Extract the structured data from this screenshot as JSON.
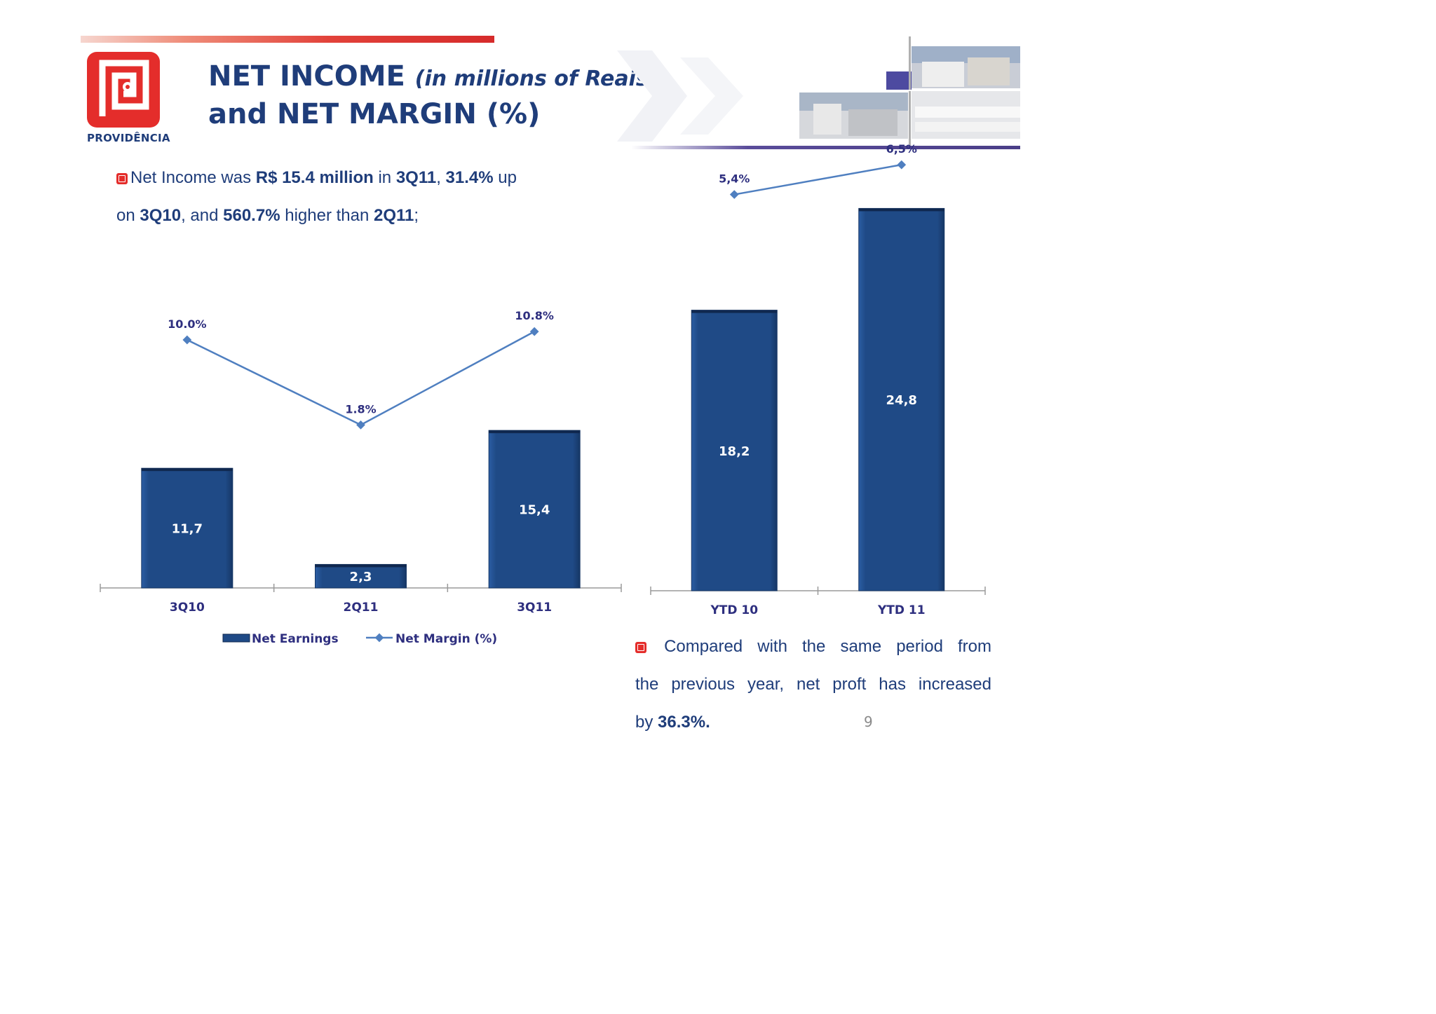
{
  "logo": {
    "name": "PROVIDÊNCIA"
  },
  "title": {
    "line1_main": "NET INCOME",
    "line1_italic": "(in millions of Reais)",
    "line2": "and NET MARGIN (%)"
  },
  "text1": {
    "p1": "Net Income was ",
    "b1": "R$ 15.4 million",
    "p2": " in ",
    "b2": "3Q11",
    "p3": ", ",
    "b3": "31.4%",
    "p4": " up",
    "p5": "on ",
    "b4": "3Q10",
    "p6": ", and ",
    "b5": "560.7%",
    "p7": " higher than ",
    "b6": "2Q11",
    "p8": ";"
  },
  "text2": {
    "line1": "Compared with the same period from",
    "line2": "the previous year, net proft has increased",
    "line3_prefix": "by ",
    "line3_bold": "36.3%."
  },
  "page_number": "9",
  "colors": {
    "bar": "#1f4a86",
    "line": "#4f7fc0",
    "label": "#2e2f7f",
    "accent": "#e42d2b"
  },
  "chart_data": [
    {
      "type": "bar",
      "categories": [
        "3Q10",
        "2Q11",
        "3Q11"
      ],
      "series": [
        {
          "name": "Net Earnings",
          "type": "bar",
          "values": [
            11.7,
            2.3,
            15.4
          ],
          "labels": [
            "11,7",
            "2,3",
            "15,4"
          ]
        },
        {
          "name": "Net Margin (%)",
          "type": "line",
          "values": [
            10.0,
            1.8,
            10.8
          ],
          "labels": [
            "10.0%",
            "1.8%",
            "10.8%"
          ]
        }
      ],
      "legend": "bottom"
    },
    {
      "type": "bar",
      "categories": [
        "YTD 10",
        "YTD 11"
      ],
      "series": [
        {
          "type": "bar",
          "values": [
            18.2,
            24.8
          ],
          "labels": [
            "18,2",
            "24,8"
          ]
        },
        {
          "type": "line",
          "values": [
            5.4,
            6.5
          ],
          "labels": [
            "5,4%",
            "6,5%"
          ]
        }
      ]
    }
  ]
}
